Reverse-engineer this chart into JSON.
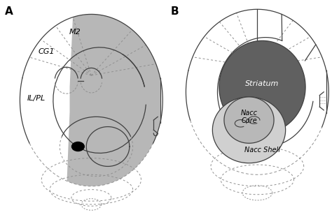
{
  "bg_color": "#ffffff",
  "panel_A_label": "A",
  "panel_B_label": "B",
  "label_M2": "M2",
  "label_CG1": "CG1",
  "label_ILPL": "IL/PL",
  "label_Striatum": "Striatum",
  "label_NaccCore": "Nacc\nCore",
  "label_NaccShell": "Nacc Shell",
  "gray_shade": "#b0b0b0",
  "gray_dark": "#606060",
  "gray_shell": "#d0d0d0",
  "gray_core": "#b8b8b8",
  "outline_color": "#404040",
  "dashed_color": "#909090",
  "font_size_region": 8,
  "font_size_panel": 11
}
